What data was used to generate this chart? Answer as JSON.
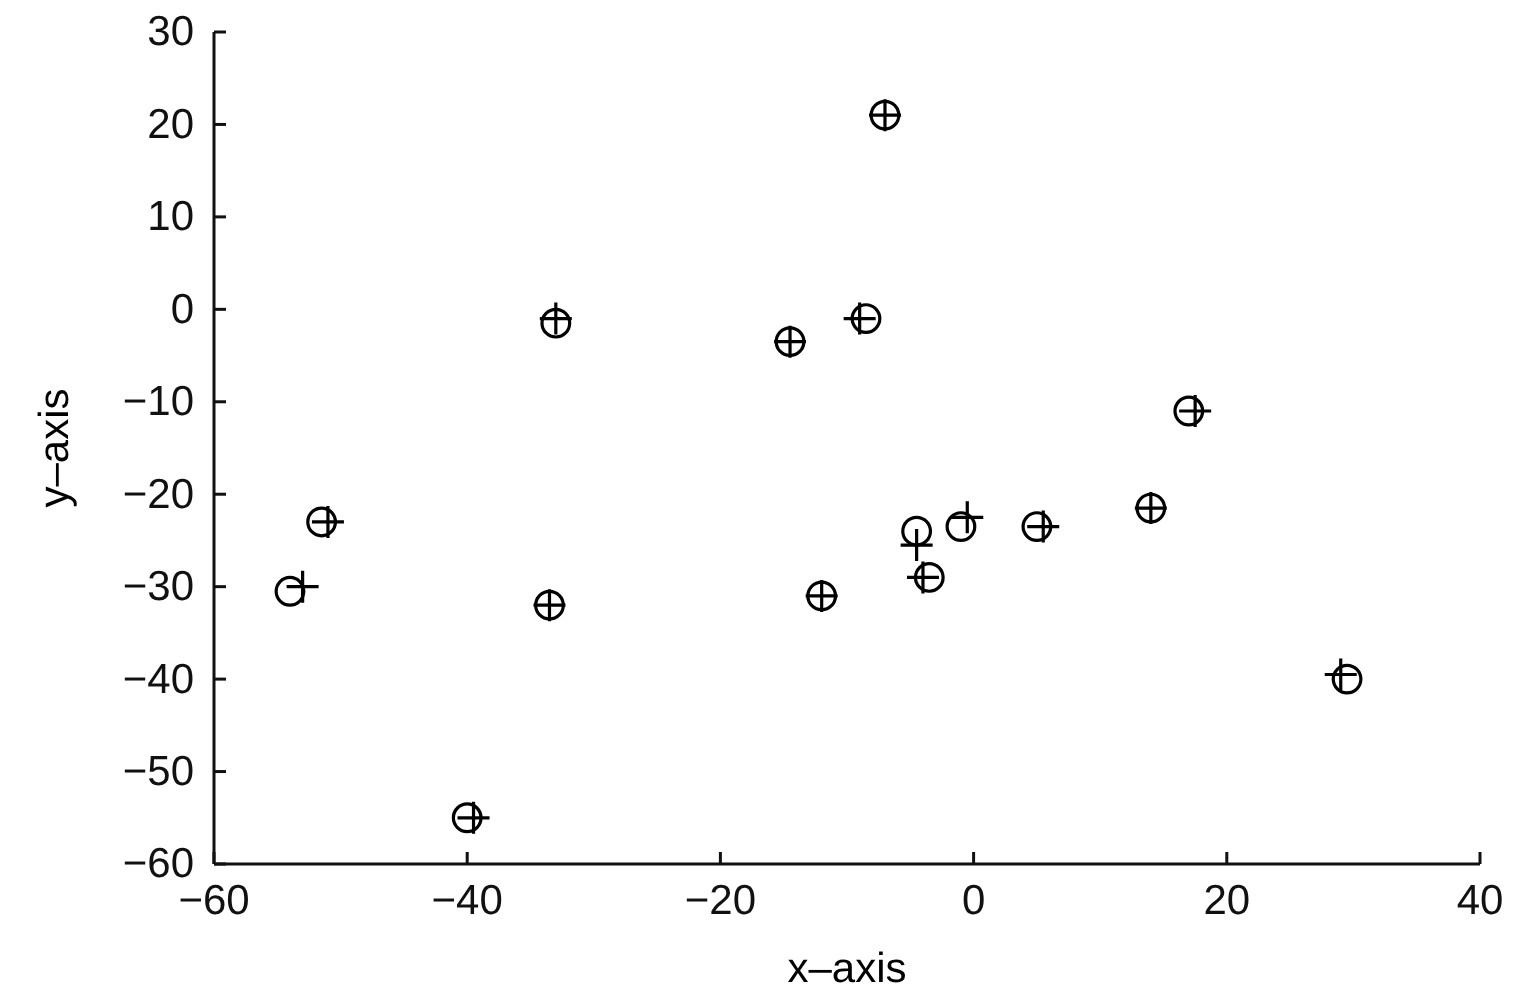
{
  "chart_data": {
    "type": "scatter",
    "xlabel": "x–axis",
    "ylabel": "y–axis",
    "xlim": [
      -60,
      40
    ],
    "xticks": [
      {
        "value": -60,
        "label": "−60"
      },
      {
        "value": -40,
        "label": "−40"
      },
      {
        "value": -20,
        "label": "−20"
      },
      0,
      20,
      40
    ],
    "ylim": [
      -60,
      30
    ],
    "yticks": [
      {
        "value": -60,
        "label": "−60"
      },
      {
        "value": -50,
        "label": "−50"
      },
      {
        "value": -40,
        "label": "−40"
      },
      {
        "value": -30,
        "label": "−30"
      },
      {
        "value": -20,
        "label": "−20"
      },
      {
        "value": -10,
        "label": "−10"
      },
      0,
      10,
      20,
      30
    ],
    "series": [
      {
        "color": "#000000",
        "marker": "circle",
        "x": [
          -54,
          -51.5,
          -40,
          -33,
          -33.5,
          -14.5,
          -8.5,
          -7,
          -12,
          -4.5,
          -3.5,
          -1,
          5,
          14,
          17,
          29.5
        ],
        "values": [
          -30.5,
          -23,
          -55,
          -1.5,
          -32,
          -3.5,
          -1,
          21,
          -31,
          -24,
          -29,
          -23.5,
          -23.5,
          -21.5,
          -11,
          -40
        ]
      },
      {
        "color": "#000000",
        "marker": "cross",
        "x": [
          -53,
          -51,
          -39.5,
          -33,
          -33.5,
          -14.5,
          -9,
          -7,
          -12,
          -4.5,
          -4,
          -0.5,
          5.5,
          14,
          17.5,
          29
        ],
        "values": [
          -30,
          -23,
          -55,
          -1,
          -32,
          -3.5,
          -1,
          21,
          -31,
          -25.5,
          -29,
          -22.5,
          -23.5,
          -21.5,
          -11,
          -39.5
        ]
      }
    ]
  }
}
